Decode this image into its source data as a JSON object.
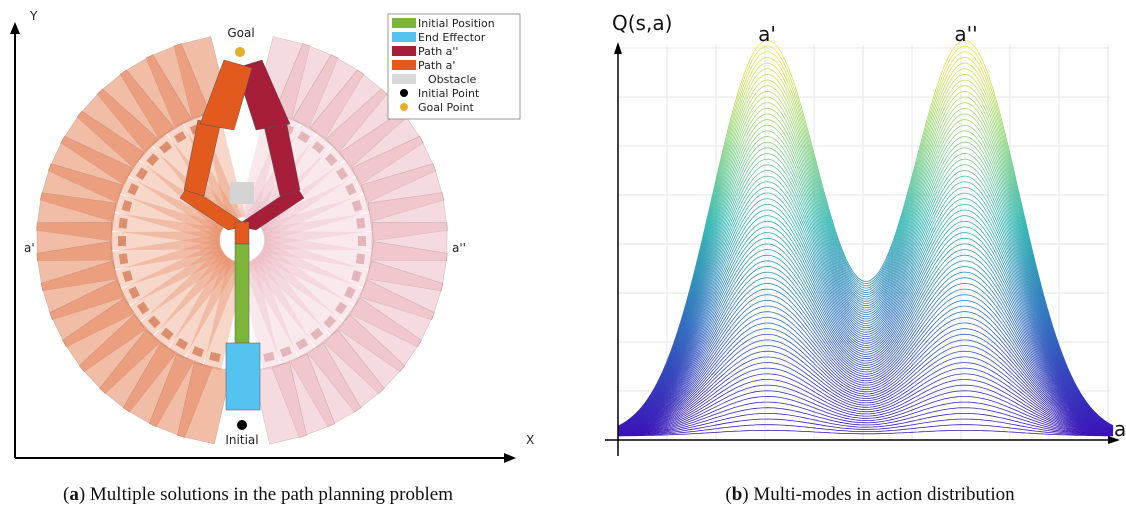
{
  "panel_a": {
    "axis_y": "Y",
    "axis_x": "X",
    "goal": "Goal",
    "initial": "Initial",
    "label_left": "a'",
    "label_right": "a''",
    "legend": [
      "Initial Position",
      "End Effector",
      "Path a''",
      "Path a'",
      "Obstacle",
      "Initial Point",
      "Goal Point"
    ],
    "caption": {
      "open": "(",
      "label": "a",
      "rest": ") Multiple solutions in the path planning problem"
    }
  },
  "panel_b": {
    "axis_y": "Q(s,a)",
    "axis_x": "a",
    "peak_left": "a'",
    "peak_right": "a''",
    "caption": {
      "open": "(",
      "label": "b",
      "rest": ") Multi-modes in action distribution"
    }
  }
}
